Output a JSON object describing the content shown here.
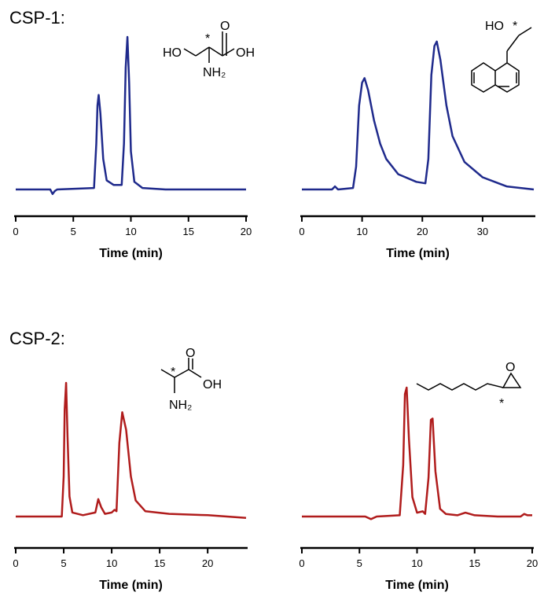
{
  "panel_labels": [
    "CSP-1:",
    "CSP-2:"
  ],
  "chart_data": [
    {
      "type": "line",
      "xlabel": "Time (min)",
      "xlim": [
        0,
        20
      ],
      "xticks": [
        0,
        5,
        10,
        15,
        20
      ],
      "ylim": [
        -5,
        100
      ],
      "structure_labels": [
        "HO",
        "OH",
        "O",
        "NH₂",
        "*"
      ],
      "x": [
        0,
        3,
        3.2,
        3.4,
        3.6,
        6.8,
        7.0,
        7.1,
        7.2,
        7.35,
        7.6,
        7.9,
        8.5,
        9.2,
        9.4,
        9.55,
        9.7,
        9.85,
        10.0,
        10.3,
        11,
        13,
        20
      ],
      "series": [
        {
          "color": "#1f2a8c",
          "values": [
            0,
            0,
            -3,
            -1,
            0,
            1,
            30,
            55,
            62,
            50,
            20,
            6,
            3,
            3,
            30,
            80,
            100,
            70,
            25,
            5,
            1,
            0,
            0
          ]
        }
      ]
    },
    {
      "type": "line",
      "xlabel": "Time (min)",
      "xlim": [
        0,
        38.5
      ],
      "xticks": [
        0,
        10,
        20,
        30
      ],
      "ylim": [
        -5,
        100
      ],
      "structure_labels": [
        "HO",
        "*"
      ],
      "x": [
        0,
        5,
        5.5,
        6,
        8.5,
        9,
        9.5,
        10.0,
        10.4,
        11,
        12,
        13,
        14,
        16,
        19,
        20.5,
        21,
        21.5,
        22,
        22.4,
        23,
        24,
        25,
        27,
        30,
        34,
        38.5
      ],
      "series": [
        {
          "color": "#1f2a8c",
          "values": [
            0,
            0,
            2,
            0,
            1,
            15,
            55,
            70,
            73,
            65,
            45,
            30,
            20,
            10,
            5,
            4,
            20,
            75,
            94,
            97,
            85,
            55,
            35,
            18,
            8,
            2,
            0
          ]
        }
      ]
    },
    {
      "type": "line",
      "xlabel": "Time (min)",
      "xlim": [
        0,
        24
      ],
      "xticks": [
        0,
        5,
        10,
        15,
        20
      ],
      "ylim": [
        -5,
        100
      ],
      "structure_labels": [
        "OH",
        "O",
        "NH₂",
        "*"
      ],
      "x": [
        0,
        4.8,
        5.0,
        5.1,
        5.25,
        5.4,
        5.6,
        5.9,
        7,
        8.3,
        8.6,
        8.9,
        9.3,
        10,
        10.3,
        10.5,
        10.8,
        11.1,
        11.5,
        12,
        12.5,
        13.5,
        16,
        20,
        24
      ],
      "series": [
        {
          "color": "#b01c1c",
          "values": [
            0,
            0,
            30,
            80,
            100,
            60,
            15,
            3,
            1,
            3,
            13,
            7,
            2,
            3,
            5,
            4,
            55,
            78,
            65,
            30,
            12,
            4,
            2,
            1,
            -1
          ]
        }
      ]
    },
    {
      "type": "line",
      "xlabel": "Time (min)",
      "xlim": [
        0,
        20
      ],
      "xticks": [
        0,
        5,
        10,
        15,
        20
      ],
      "ylim": [
        -5,
        100
      ],
      "structure_labels": [
        "O",
        "*"
      ],
      "x": [
        0,
        4,
        5.5,
        6,
        6.5,
        8.5,
        8.8,
        8.95,
        9.1,
        9.3,
        9.6,
        10,
        10.5,
        10.7,
        11,
        11.2,
        11.35,
        11.6,
        12,
        12.5,
        13.5,
        14.2,
        15,
        17,
        19,
        19.3,
        19.6,
        20
      ],
      "series": [
        {
          "color": "#b01c1c",
          "values": [
            0,
            0,
            0,
            -2,
            0,
            1,
            40,
            95,
            100,
            60,
            15,
            3,
            4,
            2,
            30,
            75,
            76,
            35,
            6,
            2,
            1,
            3,
            1,
            0,
            0,
            2,
            1,
            1
          ]
        }
      ]
    }
  ]
}
